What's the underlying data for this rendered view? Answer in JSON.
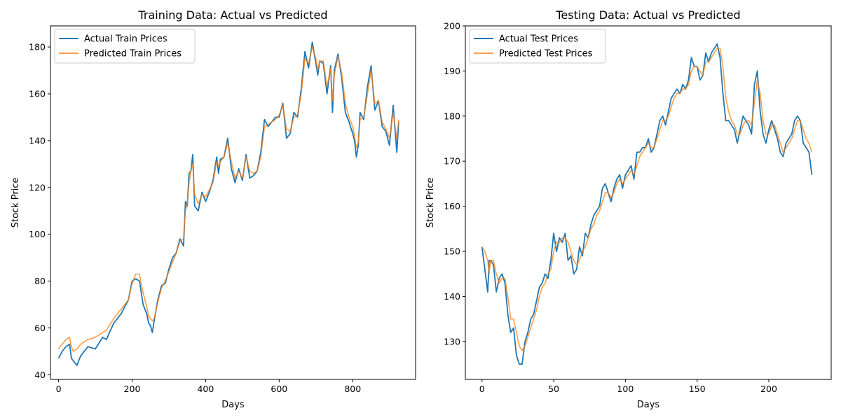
{
  "chart_data": [
    {
      "type": "line",
      "title": "Training Data: Actual vs Predicted",
      "xlabel": "Days",
      "ylabel": "Stock Price",
      "xlim": [
        -22,
        971
      ],
      "ylim": [
        38,
        189
      ],
      "xticks": [
        0,
        200,
        400,
        600,
        800
      ],
      "yticks": [
        40,
        60,
        80,
        100,
        120,
        140,
        160,
        180
      ],
      "grid": false,
      "legend_position": "top-left",
      "series": [
        {
          "name": "Actual Train Prices",
          "color": "#1f77b4",
          "x": [
            0,
            10,
            20,
            30,
            35,
            40,
            50,
            60,
            80,
            100,
            120,
            130,
            150,
            170,
            180,
            190,
            200,
            210,
            220,
            230,
            240,
            245,
            250,
            255,
            260,
            270,
            280,
            290,
            300,
            310,
            320,
            330,
            340,
            345,
            350,
            355,
            360,
            365,
            370,
            380,
            390,
            400,
            410,
            420,
            430,
            435,
            440,
            450,
            460,
            470,
            480,
            490,
            500,
            510,
            520,
            530,
            540,
            550,
            560,
            570,
            580,
            590,
            600,
            610,
            620,
            630,
            640,
            650,
            660,
            670,
            680,
            690,
            700,
            705,
            710,
            720,
            730,
            740,
            745,
            750,
            760,
            770,
            780,
            790,
            800,
            805,
            810,
            815,
            820,
            830,
            840,
            850,
            860,
            870,
            880,
            890,
            900,
            910,
            920,
            925
          ],
          "y": [
            47,
            50,
            52,
            53,
            47,
            46,
            44,
            48,
            52,
            51,
            56,
            55,
            62,
            66,
            69,
            72,
            80,
            81,
            80,
            70,
            66,
            62,
            61,
            58,
            63,
            72,
            78,
            79,
            85,
            90,
            92,
            98,
            95,
            114,
            112,
            126,
            127,
            134,
            112,
            110,
            118,
            114,
            118,
            123,
            133,
            126,
            132,
            133,
            141,
            128,
            122,
            128,
            123,
            134,
            124,
            125,
            127,
            135,
            149,
            146,
            148,
            150,
            150,
            156,
            141,
            143,
            152,
            150,
            162,
            178,
            171,
            182,
            173,
            168,
            174,
            173,
            160,
            172,
            152,
            170,
            177,
            167,
            152,
            148,
            143,
            140,
            133,
            138,
            152,
            149,
            163,
            172,
            153,
            157,
            146,
            144,
            138,
            155,
            135,
            148
          ]
        },
        {
          "name": "Predicted Train Prices",
          "color": "#ff7f0e",
          "x": [
            0,
            10,
            20,
            30,
            35,
            40,
            50,
            60,
            80,
            100,
            120,
            130,
            150,
            170,
            180,
            190,
            200,
            210,
            220,
            230,
            240,
            245,
            250,
            255,
            260,
            270,
            280,
            290,
            300,
            310,
            320,
            330,
            340,
            345,
            350,
            355,
            360,
            365,
            370,
            380,
            390,
            400,
            410,
            420,
            430,
            435,
            440,
            450,
            460,
            470,
            480,
            490,
            500,
            510,
            520,
            530,
            540,
            550,
            560,
            570,
            580,
            590,
            600,
            610,
            620,
            630,
            640,
            650,
            660,
            670,
            680,
            690,
            700,
            705,
            710,
            720,
            730,
            740,
            745,
            750,
            760,
            770,
            780,
            790,
            800,
            805,
            810,
            815,
            820,
            830,
            840,
            850,
            860,
            870,
            880,
            890,
            900,
            910,
            920,
            925
          ],
          "y": [
            51,
            53,
            55,
            56,
            52,
            50,
            51,
            53,
            55,
            56,
            58,
            59,
            64,
            68,
            70,
            72,
            79,
            83,
            83,
            75,
            69,
            65,
            64,
            63,
            64,
            71,
            77,
            80,
            84,
            88,
            92,
            97,
            98,
            110,
            113,
            122,
            127,
            130,
            117,
            113,
            117,
            116,
            119,
            122,
            131,
            129,
            131,
            133,
            139,
            131,
            124,
            127,
            124,
            133,
            127,
            126,
            127,
            133,
            146,
            147,
            148,
            149,
            151,
            155,
            145,
            144,
            150,
            151,
            160,
            175,
            173,
            180,
            175,
            170,
            174,
            174,
            163,
            171,
            157,
            168,
            176,
            169,
            156,
            150,
            146,
            142,
            137,
            139,
            149,
            150,
            160,
            170,
            156,
            157,
            148,
            145,
            141,
            152,
            141,
            149
          ]
        }
      ]
    },
    {
      "type": "line",
      "title": "Testing Data: Actual vs Predicted",
      "xlabel": "Days",
      "ylabel": "Stock Price",
      "xlim": [
        -11.6,
        243.5
      ],
      "ylim": [
        121.6,
        200
      ],
      "xticks": [
        0,
        50,
        100,
        150,
        200
      ],
      "yticks": [
        130,
        140,
        150,
        160,
        170,
        180,
        190,
        200
      ],
      "grid": false,
      "legend_position": "top-left",
      "series": [
        {
          "name": "Actual Test Prices",
          "color": "#1f77b4",
          "x": [
            0,
            2,
            4,
            5,
            6,
            8,
            10,
            12,
            14,
            16,
            18,
            20,
            22,
            24,
            26,
            28,
            30,
            32,
            34,
            36,
            38,
            40,
            42,
            44,
            46,
            48,
            50,
            52,
            54,
            56,
            58,
            60,
            62,
            64,
            66,
            68,
            70,
            72,
            74,
            76,
            78,
            80,
            82,
            84,
            86,
            88,
            90,
            92,
            94,
            96,
            98,
            100,
            102,
            104,
            106,
            108,
            110,
            112,
            114,
            116,
            118,
            120,
            122,
            124,
            126,
            128,
            130,
            132,
            134,
            136,
            138,
            140,
            142,
            144,
            146,
            148,
            150,
            152,
            154,
            156,
            158,
            160,
            162,
            164,
            166,
            168,
            170,
            172,
            174,
            176,
            178,
            180,
            182,
            184,
            186,
            188,
            190,
            192,
            194,
            196,
            198,
            200,
            202,
            204,
            206,
            208,
            210,
            212,
            214,
            216,
            218,
            220,
            222,
            224,
            226,
            228,
            230
          ],
          "y": [
            151,
            146,
            141,
            148,
            148,
            147,
            141,
            144,
            145,
            143,
            136,
            132,
            133,
            127,
            125,
            125,
            130,
            132,
            135,
            136,
            139,
            142,
            143,
            145,
            144,
            148,
            154,
            150,
            153,
            152,
            154,
            148,
            149,
            145,
            146,
            151,
            149,
            154,
            153,
            156,
            158,
            159,
            160,
            164,
            165,
            163,
            161,
            164,
            166,
            167,
            164,
            167,
            168,
            169,
            166,
            172,
            172,
            173,
            173,
            175,
            172,
            173,
            176,
            179,
            180,
            178,
            181,
            184,
            185,
            186,
            185,
            187,
            186,
            188,
            193,
            191,
            191,
            188,
            189,
            194,
            192,
            194,
            195,
            196,
            193,
            185,
            179,
            179,
            178,
            177,
            174,
            177,
            180,
            179,
            178,
            176,
            187,
            190,
            181,
            176,
            174,
            177,
            179,
            177,
            175,
            172,
            171,
            174,
            175,
            176,
            179,
            180,
            179,
            174,
            173,
            172,
            167
          ]
        },
        {
          "name": "Predicted Test Prices",
          "color": "#ff7f0e",
          "x": [
            0,
            2,
            4,
            5,
            6,
            8,
            10,
            12,
            14,
            16,
            18,
            20,
            22,
            24,
            26,
            28,
            30,
            32,
            34,
            36,
            38,
            40,
            42,
            44,
            46,
            48,
            50,
            52,
            54,
            56,
            58,
            60,
            62,
            64,
            66,
            68,
            70,
            72,
            74,
            76,
            78,
            80,
            82,
            84,
            86,
            88,
            90,
            92,
            94,
            96,
            98,
            100,
            102,
            104,
            106,
            108,
            110,
            112,
            114,
            116,
            118,
            120,
            122,
            124,
            126,
            128,
            130,
            132,
            134,
            136,
            138,
            140,
            142,
            144,
            146,
            148,
            150,
            152,
            154,
            156,
            158,
            160,
            162,
            164,
            166,
            168,
            170,
            172,
            174,
            176,
            178,
            180,
            182,
            184,
            186,
            188,
            190,
            192,
            194,
            196,
            198,
            200,
            202,
            204,
            206,
            208,
            210,
            212,
            214,
            216,
            218,
            220,
            222,
            224,
            226,
            228,
            230
          ],
          "y": [
            151,
            150,
            148,
            145,
            148,
            148,
            145,
            143,
            144,
            144,
            140,
            135,
            135,
            132,
            129,
            128,
            129,
            131,
            133,
            135,
            137,
            140,
            142,
            143,
            145,
            146,
            150,
            152,
            152,
            153,
            153,
            152,
            150,
            148,
            147,
            148,
            150,
            151,
            153,
            155,
            156,
            158,
            159,
            161,
            163,
            163,
            162,
            163,
            165,
            166,
            165,
            166,
            167,
            168,
            167,
            169,
            171,
            172,
            173,
            174,
            173,
            173,
            175,
            177,
            179,
            179,
            180,
            182,
            184,
            185,
            185,
            186,
            186,
            187,
            190,
            191,
            191,
            190,
            189,
            192,
            192,
            193,
            194,
            195,
            195,
            191,
            184,
            181,
            179,
            178,
            176,
            176,
            178,
            179,
            179,
            178,
            183,
            188,
            185,
            179,
            176,
            176,
            178,
            178,
            176,
            174,
            172,
            173,
            174,
            175,
            177,
            179,
            179,
            177,
            175,
            174,
            172
          ]
        }
      ]
    }
  ]
}
